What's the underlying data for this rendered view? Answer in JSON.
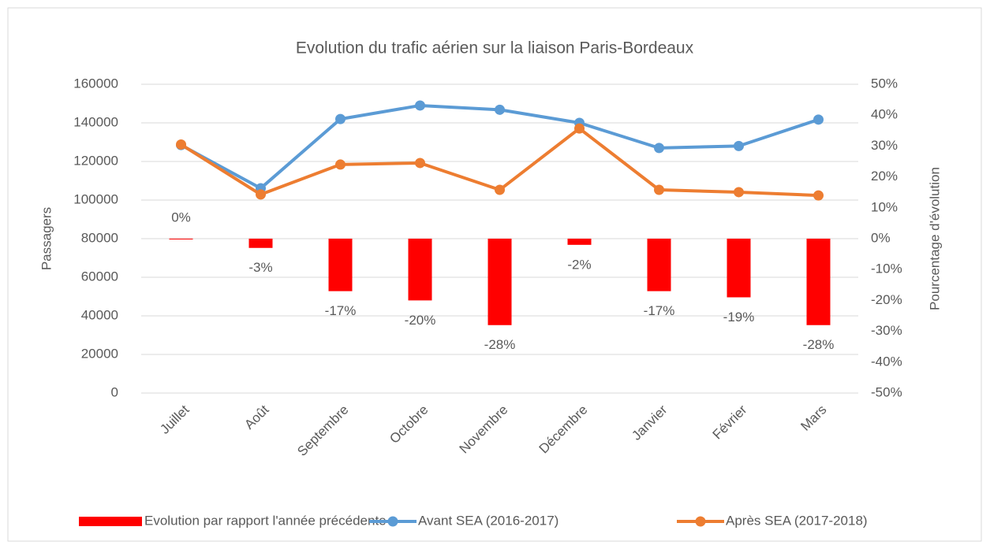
{
  "chart_data": {
    "type": "combo",
    "title": "Evolution du trafic aérien sur la liaison Paris-Bordeaux",
    "ylabel": "Passagers",
    "y2label": "Pourcentage d'évolution",
    "categories": [
      "Juillet",
      "Août",
      "Septembre",
      "Octobre",
      "Novembre",
      "Décembre",
      "Janvier",
      "Février",
      "Mars"
    ],
    "ylim": [
      0,
      160000
    ],
    "yticks": [
      0,
      20000,
      40000,
      60000,
      80000,
      100000,
      120000,
      140000,
      160000
    ],
    "y2lim": [
      -50,
      50
    ],
    "y2ticks": [
      {
        "value": -50,
        "label": "-50%"
      },
      {
        "value": -40,
        "label": "-40%"
      },
      {
        "value": -30,
        "label": "-30%"
      },
      {
        "value": -20,
        "label": "-20%"
      },
      {
        "value": -10,
        "label": "-10%"
      },
      {
        "value": 0,
        "label": "0%"
      },
      {
        "value": 10,
        "label": "10%"
      },
      {
        "value": 20,
        "label": "20%"
      },
      {
        "value": 30,
        "label": "30%"
      },
      {
        "value": 40,
        "label": "40%"
      },
      {
        "value": 50,
        "label": "50%"
      }
    ],
    "grid": true,
    "legend": "bottom",
    "series": [
      {
        "name": "Evolution par rapport l'année précédente",
        "type": "bar",
        "axis": "y2",
        "color": "#ff0000",
        "values": [
          0,
          -3,
          -17,
          -20,
          -28,
          -2,
          -17,
          -19,
          -28
        ],
        "value_labels": [
          "0%",
          "-3%",
          "-17%",
          "-20%",
          "-28%",
          "-2%",
          "-17%",
          "-19%",
          "-28%"
        ]
      },
      {
        "name": "Avant SEA (2016-2017)",
        "type": "line",
        "color": "#5b9bd5",
        "values": [
          128500,
          106100,
          142000,
          149000,
          146800,
          140000,
          127000,
          128000,
          141700
        ]
      },
      {
        "name": "Après SEA (2017-2018)",
        "type": "line",
        "color": "#ed7d31",
        "values": [
          128800,
          102900,
          118400,
          119200,
          105300,
          137100,
          105300,
          104100,
          102400
        ]
      }
    ]
  }
}
